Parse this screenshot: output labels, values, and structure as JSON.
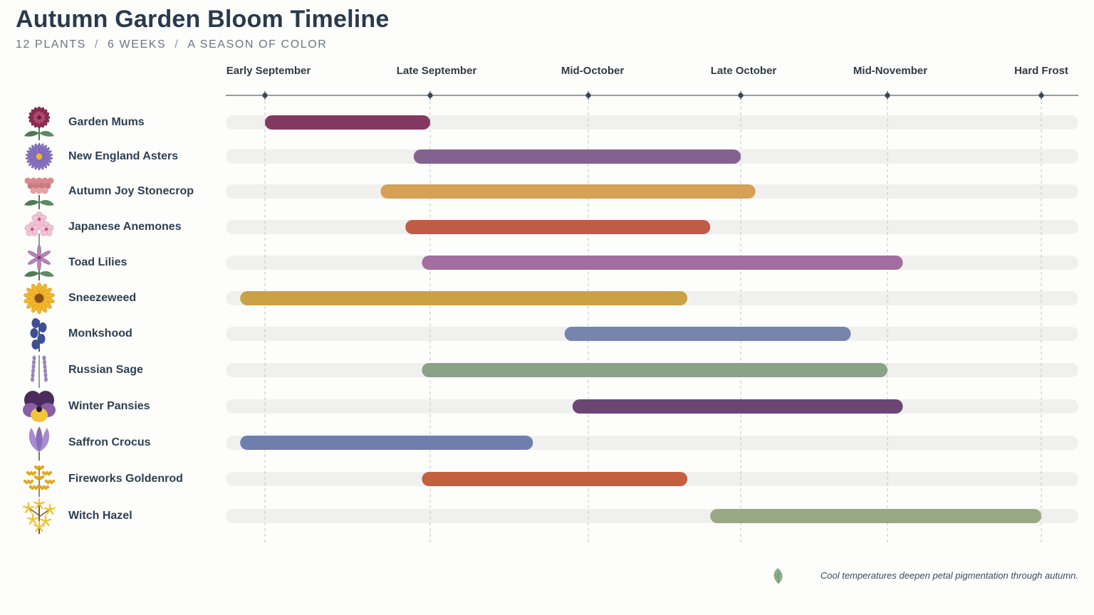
{
  "title": "Autumn Garden Bloom Timeline",
  "subtitle": {
    "plants": "12 PLANTS",
    "weeks": "6 WEEKS",
    "tagline": "A SEASON OF COLOR",
    "separator": "/"
  },
  "footnote": "Cool temperatures deepen petal pigmentation through autumn.",
  "footnote_icon": "leaf-icon",
  "chart_data": {
    "type": "gantt",
    "title": "Autumn Garden Bloom Timeline",
    "x_range": [
      0,
      5
    ],
    "milestones": [
      "Early September",
      "Late September",
      "Mid-October",
      "Late October",
      "Mid-November",
      "Hard Frost"
    ],
    "grid": "vertical dashed lines at milestones",
    "items": [
      {
        "name": "Garden Mums",
        "start": 0.0,
        "end": 1.0,
        "color": "#833861",
        "icon": "mum-flower-icon"
      },
      {
        "name": "New England Asters",
        "start": 0.9,
        "end": 3.0,
        "color": "#84628f",
        "icon": "aster-flower-icon"
      },
      {
        "name": "Autumn Joy Stonecrop",
        "start": 0.7,
        "end": 3.1,
        "color": "#d6a055",
        "icon": "stonecrop-flower-icon"
      },
      {
        "name": "Japanese Anemones",
        "start": 0.85,
        "end": 2.8,
        "color": "#c05b48",
        "icon": "anemone-flower-icon"
      },
      {
        "name": "Toad Lilies",
        "start": 0.95,
        "end": 4.1,
        "color": "#a36e9f",
        "icon": "toad-lily-flower-icon"
      },
      {
        "name": "Sneezeweed",
        "start": -0.15,
        "end": 2.65,
        "color": "#c9a246",
        "icon": "sneezeweed-flower-icon"
      },
      {
        "name": "Monkshood",
        "start": 1.85,
        "end": 3.75,
        "color": "#7784ac",
        "icon": "monkshood-flower-icon"
      },
      {
        "name": "Russian Sage",
        "start": 0.95,
        "end": 4.0,
        "color": "#8aa288",
        "icon": "russian-sage-flower-icon"
      },
      {
        "name": "Winter Pansies",
        "start": 1.9,
        "end": 4.1,
        "color": "#6b4574",
        "icon": "pansy-flower-icon"
      },
      {
        "name": "Saffron Crocus",
        "start": -0.15,
        "end": 1.65,
        "color": "#6f7fad",
        "icon": "crocus-flower-icon"
      },
      {
        "name": "Fireworks Goldenrod",
        "start": 0.95,
        "end": 2.65,
        "color": "#c2603f",
        "icon": "goldenrod-flower-icon"
      },
      {
        "name": "Witch Hazel",
        "start": 2.8,
        "end": 5.0,
        "color": "#9aa784",
        "icon": "witch-hazel-flower-icon"
      }
    ]
  }
}
